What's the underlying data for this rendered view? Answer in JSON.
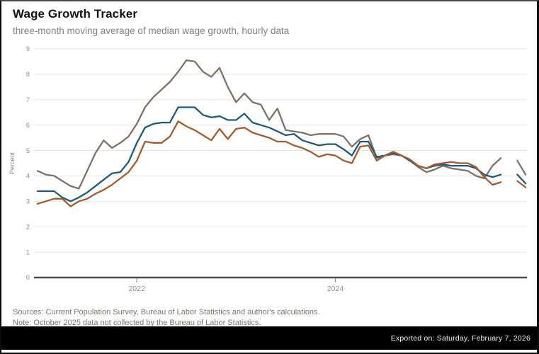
{
  "header": {
    "title": "Wage Growth Tracker",
    "subtitle": "three-month moving average of median wage growth, hourly data"
  },
  "footer": {
    "sources_line": "Sources: Current Population Survey, Bureau of Labor Statistics and author's calculations.",
    "note_line": "Note: October 2025 data not collected by the Bureau of Labor Statistics.",
    "exported_label": "Exported on: Saturday, February 7, 2026"
  },
  "chart_data": {
    "type": "line",
    "title": "Wage Growth Tracker",
    "subtitle": "three-month moving average of median wage growth, hourly data",
    "xlabel": "",
    "ylabel": "Percent",
    "ylim": [
      0,
      9
    ],
    "y_ticks": [
      0,
      1,
      2,
      3,
      4,
      5,
      6,
      7,
      8,
      9
    ],
    "x_tick_labels": [
      "2022",
      "2024"
    ],
    "x_tick_month_index": [
      12,
      36
    ],
    "x_start": "2021-01",
    "x_end": "2025-12",
    "frequency": "monthly",
    "grid": "horizontal-light, darker zero axis",
    "legend_position": "none",
    "gap_note": "October 2025 value is null in every series (not collected), producing a visible line break between Sep 2025 and Nov 2025",
    "axis_colors": {
      "grid": "#e4e4e4",
      "zero_axis": "#4d4d4d",
      "tick_text": "#8f8f8f"
    },
    "series": [
      {
        "name": "gray",
        "color": "#7c7268",
        "values": [
          4.2,
          4.05,
          4.0,
          3.8,
          3.6,
          3.5,
          4.2,
          4.9,
          5.4,
          5.1,
          5.3,
          5.55,
          6.05,
          6.7,
          7.1,
          7.4,
          7.7,
          8.1,
          8.55,
          8.5,
          8.1,
          7.9,
          8.25,
          7.5,
          6.9,
          7.25,
          6.9,
          6.8,
          6.2,
          6.65,
          5.8,
          5.75,
          5.7,
          5.6,
          5.65,
          5.65,
          5.65,
          5.55,
          5.15,
          5.45,
          5.6,
          4.7,
          4.8,
          4.85,
          4.8,
          4.6,
          4.35,
          4.15,
          4.25,
          4.4,
          4.3,
          4.25,
          4.2,
          4.0,
          3.9,
          4.4,
          4.7,
          null,
          4.6,
          4.05
        ]
      },
      {
        "name": "blue",
        "color": "#1e5a7e",
        "values": [
          3.4,
          3.4,
          3.4,
          3.15,
          3.0,
          3.15,
          3.35,
          3.6,
          3.85,
          4.1,
          4.15,
          4.55,
          5.3,
          5.9,
          6.05,
          6.1,
          6.1,
          6.7,
          6.7,
          6.7,
          6.4,
          6.3,
          6.35,
          6.2,
          6.2,
          6.45,
          6.1,
          6.0,
          5.9,
          5.75,
          5.6,
          5.65,
          5.4,
          5.3,
          5.2,
          5.25,
          5.25,
          5.05,
          4.8,
          5.35,
          5.35,
          4.75,
          4.8,
          4.9,
          4.8,
          4.6,
          4.4,
          4.3,
          4.4,
          4.45,
          4.4,
          4.4,
          4.4,
          4.3,
          4.05,
          3.95,
          4.05,
          null,
          4.05,
          3.7
        ]
      },
      {
        "name": "orange",
        "color": "#a55b2a",
        "values": [
          2.9,
          3.0,
          3.1,
          3.1,
          2.8,
          3.0,
          3.1,
          3.3,
          3.45,
          3.65,
          3.9,
          4.15,
          4.6,
          5.35,
          5.3,
          5.3,
          5.55,
          6.15,
          5.95,
          5.8,
          5.6,
          5.4,
          5.85,
          5.45,
          5.85,
          5.9,
          5.7,
          5.6,
          5.5,
          5.35,
          5.35,
          5.2,
          5.1,
          4.95,
          4.75,
          4.85,
          4.8,
          4.6,
          4.5,
          5.15,
          5.2,
          4.6,
          4.8,
          4.95,
          4.8,
          4.65,
          4.4,
          4.3,
          4.45,
          4.5,
          4.55,
          4.5,
          4.5,
          4.35,
          3.95,
          3.65,
          3.75,
          null,
          3.8,
          3.55
        ]
      }
    ]
  }
}
